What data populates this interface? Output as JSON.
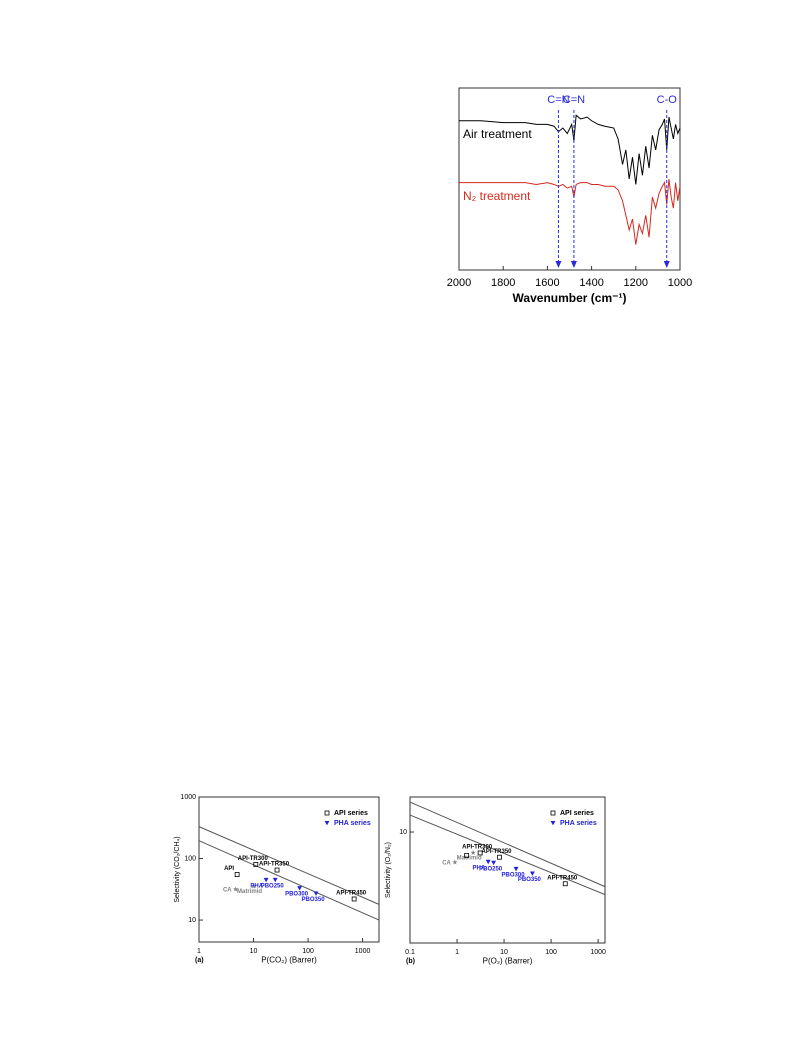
{
  "chart_data": [
    {
      "type": "line",
      "x_label": "Wavenumber (cm⁻¹)",
      "xlim": [
        2000,
        1000
      ],
      "xticks": [
        2000,
        1800,
        1600,
        1400,
        1200,
        1000
      ],
      "ylim": [
        0,
        100
      ],
      "series": [
        {
          "name": "Air treatment",
          "color": "#000000",
          "x": [
            2000,
            1900,
            1800,
            1700,
            1650,
            1600,
            1570,
            1550,
            1530,
            1510,
            1490,
            1480,
            1470,
            1450,
            1420,
            1400,
            1370,
            1340,
            1300,
            1280,
            1260,
            1245,
            1230,
            1215,
            1200,
            1185,
            1170,
            1155,
            1140,
            1125,
            1110,
            1095,
            1080,
            1070,
            1060,
            1050,
            1040,
            1030,
            1020,
            1010,
            1000
          ],
          "values": [
            82,
            82,
            81,
            81,
            80,
            80,
            79,
            76,
            78,
            75,
            80,
            71,
            85,
            83,
            84,
            82,
            80,
            79,
            78,
            72,
            58,
            66,
            50,
            62,
            47,
            64,
            52,
            68,
            56,
            74,
            66,
            77,
            80,
            83,
            66,
            84,
            78,
            72,
            80,
            75,
            78
          ]
        },
        {
          "name": "N₂ treatment",
          "color": "#d42a1e",
          "x": [
            2000,
            1900,
            1800,
            1700,
            1650,
            1600,
            1570,
            1550,
            1530,
            1510,
            1490,
            1480,
            1470,
            1450,
            1420,
            1400,
            1370,
            1340,
            1300,
            1280,
            1260,
            1245,
            1230,
            1215,
            1200,
            1185,
            1170,
            1155,
            1140,
            1125,
            1110,
            1095,
            1080,
            1070,
            1060,
            1050,
            1040,
            1030,
            1020,
            1010,
            1000
          ],
          "values": [
            48,
            48,
            48,
            48,
            47,
            48,
            47,
            46,
            47,
            45,
            46,
            40,
            47,
            48,
            48,
            47,
            47,
            46,
            46,
            44,
            38,
            30,
            22,
            28,
            14,
            25,
            20,
            30,
            18,
            40,
            34,
            42,
            46,
            48,
            36,
            50,
            40,
            34,
            48,
            38,
            46
          ]
        }
      ],
      "annotation_color": "#2b2bdc",
      "annotations": [
        {
          "text": "C=N",
          "x": 1550
        },
        {
          "text": "C=N",
          "x": 1480
        },
        {
          "text": "C-O",
          "x": 1060
        }
      ]
    },
    {
      "type": "scatter",
      "panel": "(a)",
      "x_label": "P(CO₂) (Barrer)",
      "y_label": "Selectivity (CO₂/CH₄)",
      "log_x": true,
      "log_y": true,
      "xlim": [
        1,
        2000
      ],
      "xticks": [
        1,
        10,
        100,
        1000
      ],
      "ylim": [
        4.4,
        1000
      ],
      "yticks": [
        10,
        100,
        1000
      ],
      "legend": "top-right",
      "series": [
        {
          "name": "API series",
          "color": "#000000",
          "marker": "square",
          "x": [
            5,
            11,
            27,
            700
          ],
          "values": [
            55,
            80,
            65,
            22
          ],
          "point_labels": [
            "API",
            "API-TR300",
            "API-TR350",
            "API-TR450"
          ]
        },
        {
          "name": "PHA series",
          "color": "#2020e0",
          "marker": "triangle",
          "x": [
            17,
            25,
            70,
            140
          ],
          "values": [
            45,
            45,
            33,
            27
          ],
          "point_labels": [
            "PHA",
            "PBO250",
            "PBO300",
            "PBO350"
          ]
        }
      ],
      "reference_points": {
        "color": "#808080",
        "x": [
          4.7,
          10
        ],
        "values": [
          31,
          35
        ],
        "labels": [
          "CA",
          "Matrimid"
        ]
      },
      "bounds": [
        {
          "x": [
            1,
            2000
          ],
          "values": [
            330,
            18
          ]
        },
        {
          "x": [
            1,
            2000
          ],
          "values": [
            195,
            10
          ]
        }
      ]
    },
    {
      "type": "scatter",
      "panel": "(b)",
      "x_label": "P(O₂) (Barrer)",
      "y_label": "Selectivity (O₂/N₂)",
      "log_x": true,
      "log_y": true,
      "xlim": [
        0.1,
        1400
      ],
      "xticks": [
        0.1,
        1,
        10,
        100,
        1000
      ],
      "ylim": [
        1.4,
        18.6
      ],
      "yticks": [
        10
      ],
      "legend": "top-right",
      "series": [
        {
          "name": "API series",
          "color": "#000000",
          "marker": "square",
          "x": [
            1.6,
            3.1,
            8,
            200
          ],
          "values": [
            6.6,
            6.9,
            6.4,
            4.0
          ],
          "point_labels": [
            "",
            "API-TR300",
            "API-TR350",
            "API-TR450"
          ]
        },
        {
          "name": "PHA series",
          "color": "#2020e0",
          "marker": "triangle",
          "x": [
            4.6,
            6,
            18,
            40
          ],
          "values": [
            5.9,
            5.8,
            5.2,
            4.8
          ],
          "point_labels": [
            "PHA",
            "PBO250",
            "PBO300",
            "PBO350"
          ]
        }
      ],
      "reference_points": {
        "color": "#808080",
        "x": [
          0.9,
          2.2
        ],
        "values": [
          5.8,
          6.9
        ],
        "labels": [
          "CA",
          "Matrimid"
        ]
      },
      "bounds": [
        {
          "x": [
            0.1,
            1400
          ],
          "values": [
            17,
            3.8
          ]
        },
        {
          "x": [
            0.1,
            1400
          ],
          "values": [
            13.5,
            3.3
          ]
        }
      ]
    }
  ]
}
